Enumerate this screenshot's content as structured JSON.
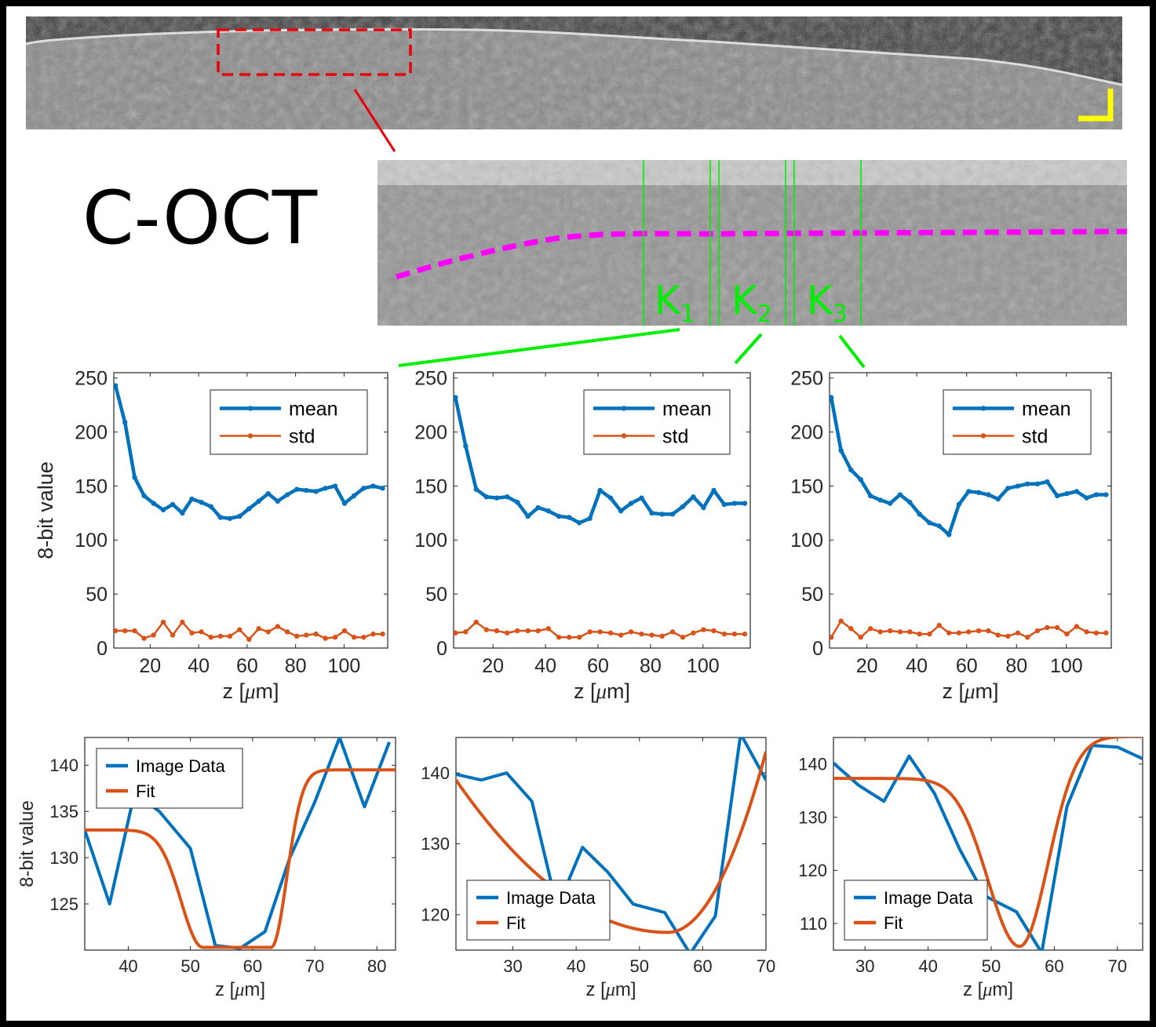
{
  "figure": {
    "label": "C-OCT",
    "zoom_labels": [
      {
        "main": "K",
        "sub": "1"
      },
      {
        "main": "K",
        "sub": "2"
      },
      {
        "main": "K",
        "sub": "3"
      }
    ],
    "colors": {
      "mean": "#0072BD",
      "std": "#D95319",
      "fit": "#D95319",
      "roi_box": "#E8000B",
      "window_lines": "#00EE00",
      "surface_trace": "#FF00FF",
      "scalebar": "#FFFF00"
    }
  },
  "chart_data": [
    {
      "type": "line",
      "id": "profile-k1",
      "ylabel": "8-bit value",
      "xlabel_pre": "z [",
      "xlabel_unit": "μ",
      "xlabel_post": "m]",
      "xlim": [
        5,
        118
      ],
      "ylim": [
        0,
        255
      ],
      "xticks": [
        20,
        40,
        60,
        80,
        100
      ],
      "yticks": [
        0,
        50,
        100,
        150,
        200,
        250
      ],
      "legend_position": "top-right",
      "series": [
        {
          "name": "mean",
          "role": "mean",
          "x": [
            5.7,
            9.6,
            13.6,
            17.5,
            21.4,
            25.4,
            29.3,
            33.3,
            37.2,
            41.1,
            45.1,
            49,
            52.9,
            56.9,
            60.8,
            64.8,
            68.7,
            72.6,
            76.6,
            80.5,
            84.4,
            88.4,
            92.3,
            96.3,
            100.2,
            104.1,
            108.1,
            112,
            115.9
          ],
          "y": [
            243,
            209,
            158,
            141,
            134,
            128,
            133,
            125,
            138,
            135,
            131,
            121,
            120,
            122,
            129,
            136,
            143,
            136,
            142,
            147,
            146,
            145,
            148,
            150,
            134,
            141,
            148,
            150,
            148
          ]
        },
        {
          "name": "std",
          "role": "std",
          "x": [
            5.7,
            9.6,
            13.6,
            17.5,
            21.4,
            25.4,
            29.3,
            33.3,
            37.2,
            41.1,
            45.1,
            49,
            52.9,
            56.9,
            60.8,
            64.8,
            68.7,
            72.6,
            76.6,
            80.5,
            84.4,
            88.4,
            92.3,
            96.3,
            100.2,
            104.1,
            108.1,
            112,
            115.9
          ],
          "y": [
            16,
            16,
            16,
            9,
            12,
            24,
            12,
            24,
            14,
            15,
            10,
            11,
            11,
            17,
            8,
            18,
            15,
            20,
            15,
            11,
            12,
            13,
            9,
            10,
            16,
            10,
            10,
            13,
            13
          ]
        }
      ]
    },
    {
      "type": "line",
      "id": "profile-k2",
      "ylabel": "",
      "xlabel_pre": "z [",
      "xlabel_unit": "μ",
      "xlabel_post": "m]",
      "xlim": [
        5,
        118
      ],
      "ylim": [
        0,
        255
      ],
      "xticks": [
        20,
        40,
        60,
        80,
        100
      ],
      "yticks": [
        0,
        50,
        100,
        150,
        200,
        250
      ],
      "legend_position": "top-right",
      "series": [
        {
          "name": "mean",
          "role": "mean",
          "x": [
            5.7,
            9.6,
            13.6,
            17.5,
            21.4,
            25.4,
            29.3,
            33.3,
            37.2,
            41.1,
            45.1,
            49,
            52.9,
            56.9,
            60.8,
            64.8,
            68.7,
            72.6,
            76.6,
            80.5,
            84.4,
            88.4,
            92.3,
            96.3,
            100.2,
            104.1,
            108.1,
            112,
            115.9
          ],
          "y": [
            232,
            187,
            147,
            140,
            139,
            140,
            135,
            122,
            130,
            127,
            122,
            121,
            116,
            120,
            146,
            139,
            127,
            134,
            139,
            125,
            124,
            124,
            131,
            140,
            130,
            146,
            133,
            134,
            134
          ]
        },
        {
          "name": "std",
          "role": "std",
          "x": [
            5.7,
            9.6,
            13.6,
            17.5,
            21.4,
            25.4,
            29.3,
            33.3,
            37.2,
            41.1,
            45.1,
            49,
            52.9,
            56.9,
            60.8,
            64.8,
            68.7,
            72.6,
            76.6,
            80.5,
            84.4,
            88.4,
            92.3,
            96.3,
            100.2,
            104.1,
            108.1,
            112,
            115.9
          ],
          "y": [
            14,
            15,
            24,
            17,
            16,
            14,
            16,
            16,
            16,
            18,
            10,
            10,
            10,
            15,
            15,
            14,
            12,
            15,
            13,
            12,
            11,
            15,
            10,
            14,
            17,
            16,
            13,
            13,
            13
          ]
        }
      ]
    },
    {
      "type": "line",
      "id": "profile-k3",
      "ylabel": "",
      "xlabel_pre": "z [",
      "xlabel_unit": "μ",
      "xlabel_post": "m]",
      "xlim": [
        5,
        118
      ],
      "ylim": [
        0,
        255
      ],
      "xticks": [
        20,
        40,
        60,
        80,
        100
      ],
      "yticks": [
        0,
        50,
        100,
        150,
        200,
        250
      ],
      "legend_position": "top-right",
      "series": [
        {
          "name": "mean",
          "role": "mean",
          "x": [
            5.7,
            9.6,
            13.6,
            17.5,
            21.4,
            25.4,
            29.3,
            33.3,
            37.2,
            41.1,
            45.1,
            49,
            52.9,
            56.9,
            60.8,
            64.8,
            68.7,
            72.6,
            76.6,
            80.5,
            84.4,
            88.4,
            92.3,
            96.3,
            100.2,
            104.1,
            108.1,
            112,
            115.9
          ],
          "y": [
            232,
            183,
            165,
            156,
            141,
            137,
            134,
            142,
            135,
            124,
            116,
            113,
            105,
            133,
            145,
            144,
            142,
            138,
            148,
            150,
            152,
            152,
            154,
            141,
            143,
            145,
            139,
            142,
            142
          ]
        },
        {
          "name": "std",
          "role": "std",
          "x": [
            5.7,
            9.6,
            13.6,
            17.5,
            21.4,
            25.4,
            29.3,
            33.3,
            37.2,
            41.1,
            45.1,
            49,
            52.9,
            56.9,
            60.8,
            64.8,
            68.7,
            72.6,
            76.6,
            80.5,
            84.4,
            88.4,
            92.3,
            96.3,
            100.2,
            104.1,
            108.1,
            112,
            115.9
          ],
          "y": [
            10,
            25,
            18,
            10,
            18,
            15,
            16,
            15,
            15,
            13,
            13,
            21,
            14,
            14,
            15,
            16,
            16,
            12,
            11,
            14,
            10,
            16,
            19,
            19,
            13,
            20,
            15,
            14,
            14
          ]
        }
      ]
    },
    {
      "type": "line",
      "id": "fit-k1",
      "ylabel": "8-bit value",
      "xlabel_pre": "z [",
      "xlabel_unit": "μ",
      "xlabel_post": "m]",
      "xlim": [
        33,
        83
      ],
      "ylim": [
        120,
        143
      ],
      "xticks": [
        40,
        50,
        60,
        70,
        80
      ],
      "yticks": [
        125,
        130,
        135,
        140
      ],
      "legend_position": "top-left",
      "series": [
        {
          "name": "Image Data",
          "role": "data",
          "x": [
            33,
            37,
            41,
            45,
            50,
            54,
            58,
            62,
            66,
            70,
            74,
            78,
            82
          ],
          "y": [
            133,
            125,
            137,
            135,
            131,
            120.5,
            120.2,
            122,
            130,
            136,
            143,
            135.5,
            142.5
          ]
        },
        {
          "name": "Fit",
          "role": "fit",
          "curve": "gaussian-dip",
          "baseline_left": 133,
          "baseline_right": 139.5,
          "minimum": 120.3,
          "center": 58,
          "rise_left": 3.5,
          "rise_right": 2.5,
          "plateau_left": 52,
          "plateau_right": 63
        }
      ]
    },
    {
      "type": "line",
      "id": "fit-k2",
      "ylabel": "",
      "xlabel_pre": "z [",
      "xlabel_unit": "μ",
      "xlabel_post": "m]",
      "xlim": [
        21,
        70
      ],
      "ylim": [
        115,
        145
      ],
      "xticks": [
        30,
        40,
        50,
        60,
        70
      ],
      "yticks": [
        120,
        130,
        140
      ],
      "legend_position": "bottom-left",
      "series": [
        {
          "name": "Image Data",
          "role": "data",
          "x": [
            21,
            25,
            29,
            33,
            37,
            41,
            45,
            49,
            54,
            58,
            62,
            66,
            70
          ],
          "y": [
            139.8,
            139,
            140,
            136,
            121,
            129.5,
            126,
            121.5,
            120.3,
            114.5,
            119.8,
            145.5,
            139
          ]
        },
        {
          "name": "Fit",
          "role": "fit",
          "curve": "parabola",
          "x_start": 21,
          "x_end": 70,
          "y_start": 139,
          "y_end": 143,
          "center": 54.5,
          "minimum": 117.5
        }
      ]
    },
    {
      "type": "line",
      "id": "fit-k3",
      "ylabel": "",
      "xlabel_pre": "z [",
      "xlabel_unit": "μ",
      "xlabel_post": "m]",
      "xlim": [
        25,
        74
      ],
      "ylim": [
        105,
        145
      ],
      "xticks": [
        30,
        40,
        50,
        60,
        70
      ],
      "yticks": [
        110,
        120,
        130,
        140
      ],
      "legend_position": "bottom-left",
      "series": [
        {
          "name": "Image Data",
          "role": "data",
          "x": [
            25,
            29,
            33,
            37,
            41,
            45,
            49,
            54,
            58,
            62,
            66,
            70,
            74
          ],
          "y": [
            140.2,
            136,
            133,
            141.5,
            134.5,
            124,
            115.2,
            112.2,
            104.5,
            132,
            143.5,
            143.2,
            141
          ]
        },
        {
          "name": "Fit",
          "role": "fit",
          "curve": "gaussian-dip",
          "baseline_left": 137.3,
          "baseline_right": 145.2,
          "minimum": 105.7,
          "center": 54.5,
          "rise_left": 5,
          "rise_right": 4.5,
          "plateau_left": 54.5,
          "plateau_right": 54.5
        }
      ]
    }
  ]
}
